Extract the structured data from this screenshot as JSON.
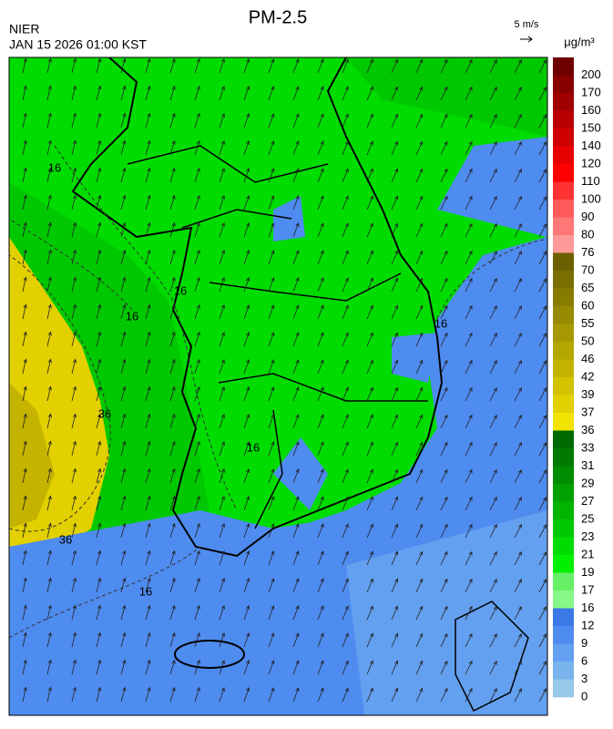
{
  "header": {
    "agency": "NIER",
    "timestamp": "JAN 15 2026 01:00 KST",
    "title": "PM-2.5",
    "wind_scale": "5 m/s",
    "unit": "μg/m³"
  },
  "legend": {
    "levels": [
      200,
      170,
      160,
      150,
      140,
      120,
      110,
      100,
      90,
      80,
      76,
      70,
      65,
      60,
      55,
      50,
      46,
      42,
      39,
      37,
      36,
      33,
      31,
      29,
      27,
      25,
      23,
      21,
      19,
      17,
      16,
      12,
      9,
      6,
      3,
      0
    ],
    "colors": [
      "#700000",
      "#880000",
      "#a00000",
      "#b80000",
      "#d00000",
      "#e80000",
      "#ff0000",
      "#ff3333",
      "#ff5a5a",
      "#ff7777",
      "#ff9999",
      "#6b6000",
      "#7a6e00",
      "#887c00",
      "#978a00",
      "#a69800",
      "#b5a600",
      "#c4b400",
      "#d3c200",
      "#e2d000",
      "#f2e400",
      "#006a00",
      "#007a00",
      "#008c00",
      "#00a000",
      "#00b400",
      "#00c800",
      "#00dc00",
      "#00f000",
      "#66f066",
      "#88f888",
      "#3c78e6",
      "#4f8cf0",
      "#64a0f0",
      "#7ab4ec",
      "#96c8e8"
    ]
  },
  "contour_labels": [
    16,
    16,
    16,
    16,
    16,
    16,
    36,
    36
  ]
}
